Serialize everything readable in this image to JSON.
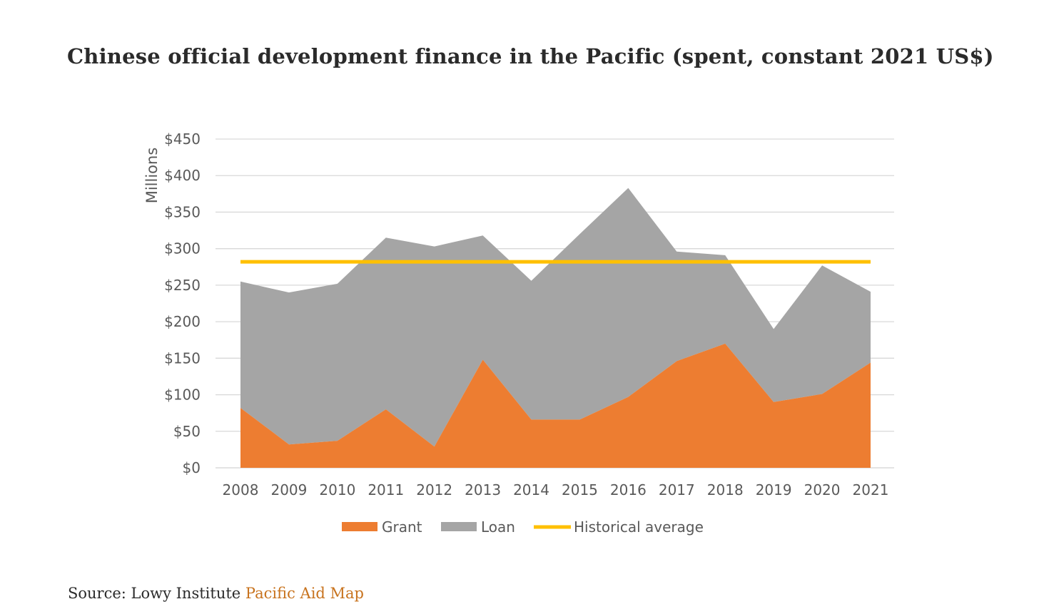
{
  "title": "Chinese official development finance in the Pacific (spent, constant 2021 US$)",
  "source": {
    "prefix": "Source: Lowy Institute",
    "link_text": "Pacific Aid Map"
  },
  "colors": {
    "grant": "#ed7d31",
    "loan": "#a5a5a5",
    "average": "#ffc000",
    "grid": "#d9d9d9",
    "link": "#c8731e"
  },
  "chart_data": {
    "type": "area",
    "stacked": true,
    "ylabel": "Millions",
    "xlabel": "",
    "ylim": [
      0,
      450
    ],
    "yticks": [
      0,
      50,
      100,
      150,
      200,
      250,
      300,
      350,
      400,
      450
    ],
    "ytick_labels": [
      "$0",
      "$50",
      "$100",
      "$150",
      "$200",
      "$250",
      "$300",
      "$350",
      "$400",
      "$450"
    ],
    "grid": true,
    "legend_position": "bottom",
    "categories": [
      "2008",
      "2009",
      "2010",
      "2011",
      "2012",
      "2013",
      "2014",
      "2015",
      "2016",
      "2017",
      "2018",
      "2019",
      "2020",
      "2021"
    ],
    "series": [
      {
        "name": "Grant",
        "kind": "area",
        "values": [
          82,
          32,
          37,
          80,
          29,
          148,
          66,
          66,
          97,
          146,
          170,
          90,
          101,
          144
        ]
      },
      {
        "name": "Loan",
        "kind": "area",
        "values": [
          173,
          208,
          215,
          235,
          274,
          170,
          190,
          254,
          286,
          150,
          121,
          100,
          176,
          97
        ]
      },
      {
        "name": "Historical average",
        "kind": "line",
        "values": [
          282,
          282,
          282,
          282,
          282,
          282,
          282,
          282,
          282,
          282,
          282,
          282,
          282,
          282
        ]
      }
    ]
  }
}
